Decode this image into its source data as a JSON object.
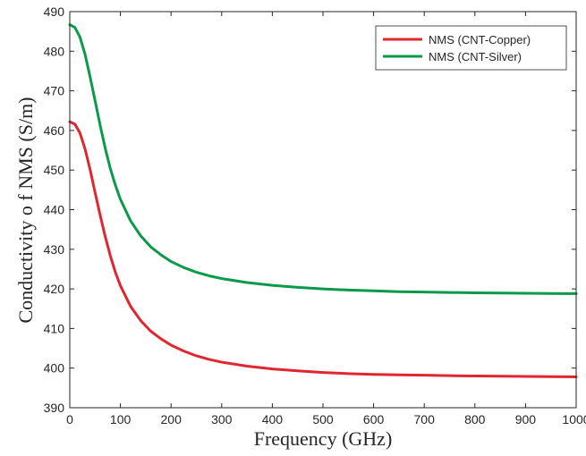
{
  "chart_data": {
    "type": "line",
    "title": "",
    "xlabel": "Frequency (GHz)",
    "ylabel": "Conductivity o f  NMS (S/m)",
    "xlim": [
      0,
      1000
    ],
    "ylim": [
      390,
      490
    ],
    "xticks": [
      0,
      100,
      200,
      300,
      400,
      500,
      600,
      700,
      800,
      900,
      1000
    ],
    "yticks": [
      390,
      400,
      410,
      420,
      430,
      440,
      450,
      460,
      470,
      480,
      490
    ],
    "grid": false,
    "legend_position": "top-right",
    "x": [
      0,
      10,
      20,
      30,
      40,
      50,
      60,
      70,
      80,
      90,
      100,
      120,
      140,
      160,
      180,
      200,
      225,
      250,
      275,
      300,
      350,
      400,
      450,
      500,
      550,
      600,
      650,
      700,
      750,
      800,
      850,
      900,
      950,
      1000
    ],
    "series": [
      {
        "name": "NMS (CNT-Copper)",
        "color": "#e0262e",
        "values": [
          462.2,
          461.6,
          459.4,
          455.4,
          450.2,
          444.3,
          438.6,
          433.2,
          428.4,
          424.2,
          420.8,
          415.6,
          412.0,
          409.3,
          407.4,
          405.8,
          404.3,
          403.1,
          402.2,
          401.5,
          400.5,
          399.8,
          399.3,
          398.9,
          398.6,
          398.4,
          398.3,
          398.2,
          398.1,
          398.0,
          397.95,
          397.9,
          397.85,
          397.8
        ]
      },
      {
        "name": "NMS (CNT-Silver)",
        "color": "#0b9a48",
        "values": [
          486.7,
          486.0,
          483.6,
          479.3,
          473.6,
          467.5,
          461.3,
          455.5,
          450.4,
          446.2,
          442.6,
          437.2,
          433.4,
          430.6,
          428.6,
          426.9,
          425.4,
          424.2,
          423.3,
          422.6,
          421.6,
          420.9,
          420.4,
          420.0,
          419.7,
          419.5,
          419.3,
          419.2,
          419.1,
          419.0,
          418.95,
          418.9,
          418.85,
          418.8
        ]
      }
    ]
  }
}
